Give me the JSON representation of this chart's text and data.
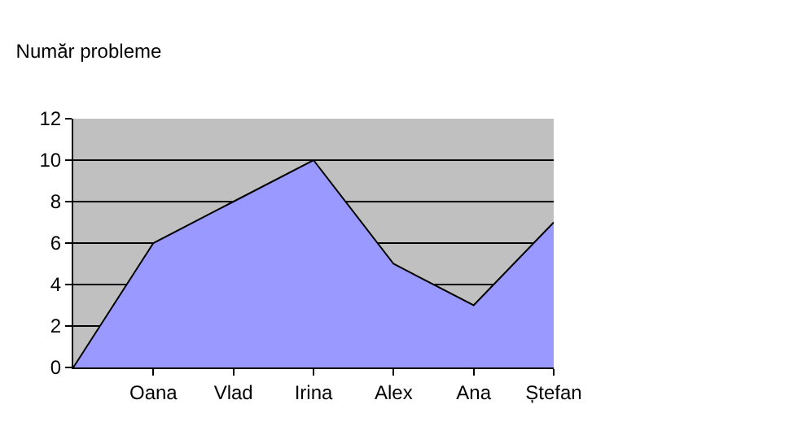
{
  "chart_data": {
    "type": "area",
    "title": "Număr probleme",
    "categories": [
      null,
      "Oana",
      "Vlad",
      "Irina",
      "Alex",
      "Ana",
      "Ștefan"
    ],
    "values": [
      0,
      6,
      8,
      10,
      5,
      3,
      7
    ],
    "color": "#9999ff",
    "ylim": [
      0,
      12
    ],
    "yticks": [
      0,
      2,
      4,
      6,
      8,
      10,
      12
    ],
    "grid": "y",
    "legend": false
  }
}
